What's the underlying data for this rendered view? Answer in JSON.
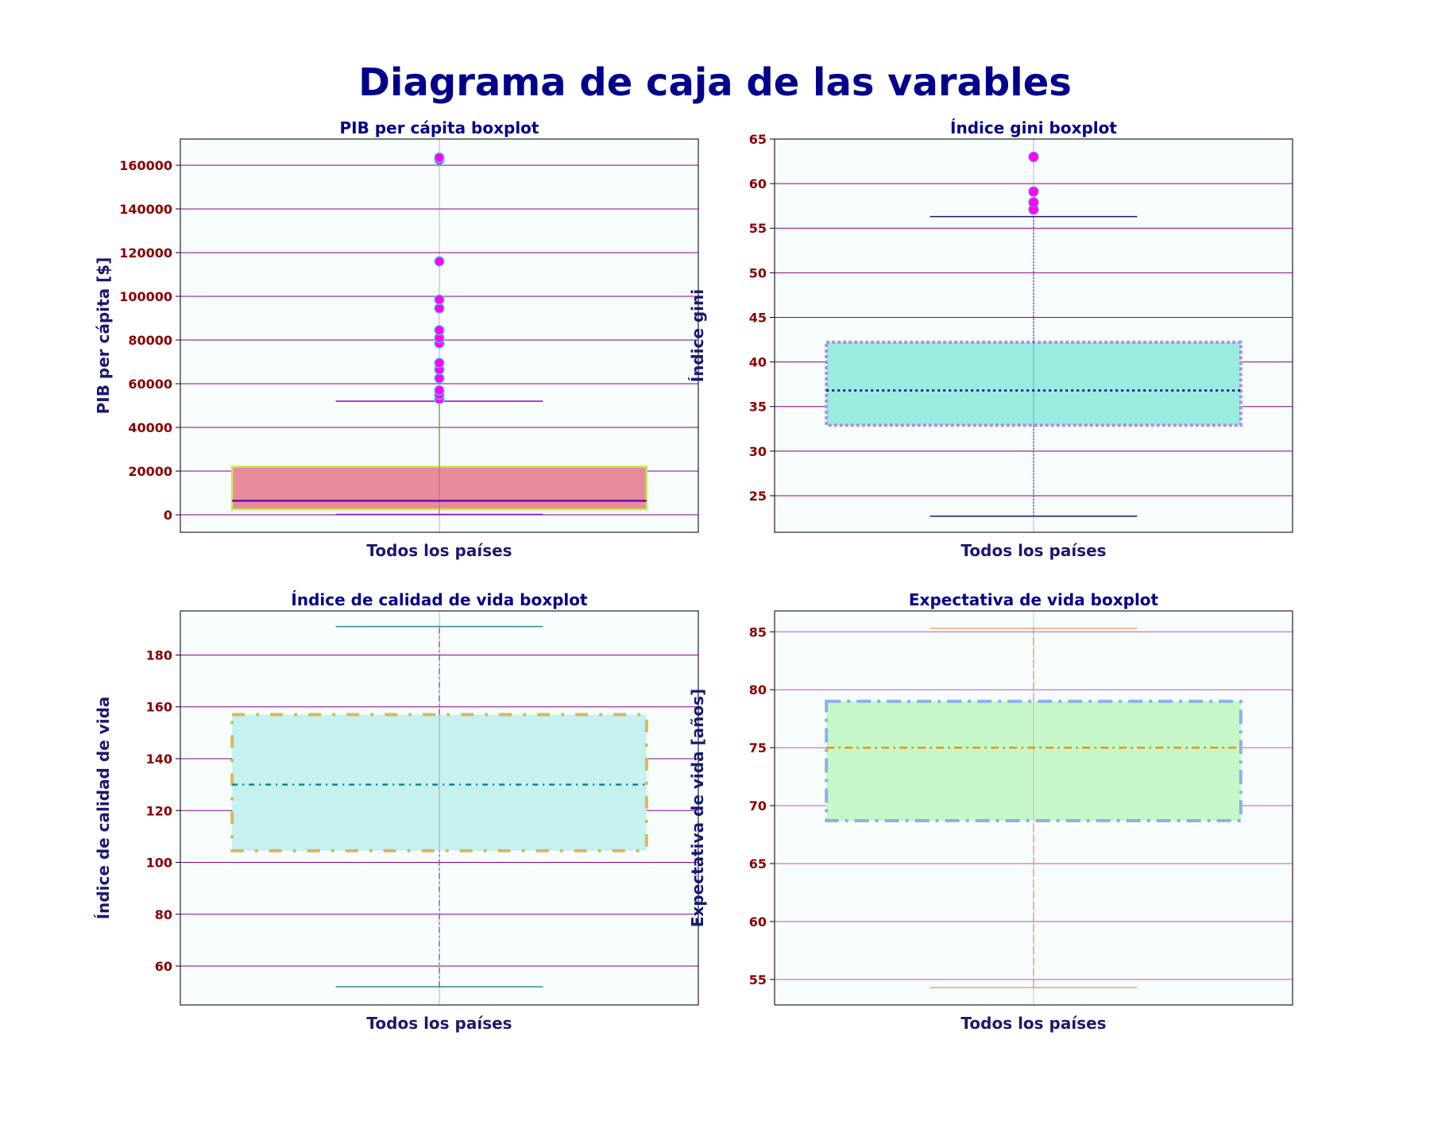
{
  "suptitle": "Diagrama de caja de las varables",
  "chart_data": [
    {
      "type": "box",
      "title": "PIB per cápita boxplot",
      "xlabel": "Todos los países",
      "ylabel": "PIB per cápita [$]",
      "ylim": [
        -8000,
        172000
      ],
      "yticks": [
        0,
        20000,
        40000,
        60000,
        80000,
        100000,
        120000,
        140000,
        160000
      ],
      "grid": true,
      "stats": {
        "whislo": 200,
        "q1": 2500,
        "median": 6400,
        "q3": 22000,
        "whishi": 52000
      },
      "fliers": [
        53000,
        55000,
        57000,
        62500,
        66500,
        69500,
        78500,
        81000,
        84500,
        94500,
        98500,
        116000,
        162500,
        163500
      ],
      "colors": {
        "box_fill": "#e88c9c",
        "box_edge": "#c7ea46",
        "median": "#6a0dad",
        "whisker": "#9acd32",
        "cap": "#9400d3",
        "flier_face": "#ff00ff",
        "flier_edge": "#40e0d0",
        "grid": "#8b008b"
      }
    },
    {
      "type": "box",
      "title": "Índice gini boxplot",
      "xlabel": "Todos los países",
      "ylabel": "Índice gini",
      "ylim": [
        20.9,
        65
      ],
      "yticks": [
        25,
        30,
        35,
        40,
        45,
        50,
        55,
        60,
        65
      ],
      "grid": true,
      "stats": {
        "whislo": 22.7,
        "q1": 32.9,
        "median": 36.8,
        "q3": 42.2,
        "whishi": 56.3
      },
      "fliers": [
        57.1,
        57.9,
        59.1,
        63.0
      ],
      "colors": {
        "box_fill": "#98ede0",
        "box_edge": "#b58ae6",
        "median": "#000080",
        "whisker": "#483d8b",
        "cap": "#191970",
        "flier_face": "#ff00ff",
        "flier_edge": "#9370db",
        "grid": "#8b008b"
      }
    },
    {
      "type": "box",
      "title": "Índice de calidad de vida boxplot",
      "xlabel": "Todos los países",
      "ylabel": "Índice de calidad de vida",
      "ylim": [
        45,
        197
      ],
      "yticks": [
        60,
        80,
        100,
        120,
        140,
        160,
        180
      ],
      "grid": true,
      "stats": {
        "whislo": 52,
        "q1": 104.5,
        "median": 130,
        "q3": 157,
        "whishi": 191
      },
      "fliers": [],
      "colors": {
        "box_fill": "#c5f2f0",
        "box_edge": "#d8b75f",
        "median": "#008b8b",
        "whisker": "#9370db",
        "cap": "#2e8b8b",
        "flier_face": "#ff00ff",
        "flier_edge": "#40e0d0",
        "grid": "#8b008b"
      }
    },
    {
      "type": "box",
      "title": "Expectativa de vida boxplot",
      "xlabel": "Todos los países",
      "ylabel": "Expectativa de vida [años]",
      "ylim": [
        52.8,
        86.8
      ],
      "yticks": [
        55,
        60,
        65,
        70,
        75,
        80,
        85
      ],
      "grid": true,
      "stats": {
        "whislo": 54.3,
        "q1": 68.7,
        "median": 75.0,
        "q3": 79.0,
        "whishi": 85.3
      },
      "fliers": [],
      "colors": {
        "box_fill": "#c5f7c8",
        "box_edge": "#8eb0e6",
        "median": "#ff8c00",
        "whisker": "#ffa500",
        "cap": "#f4a460",
        "flier_face": "#ff00ff",
        "flier_edge": "#40e0d0",
        "grid": "#ba55d3"
      }
    }
  ]
}
